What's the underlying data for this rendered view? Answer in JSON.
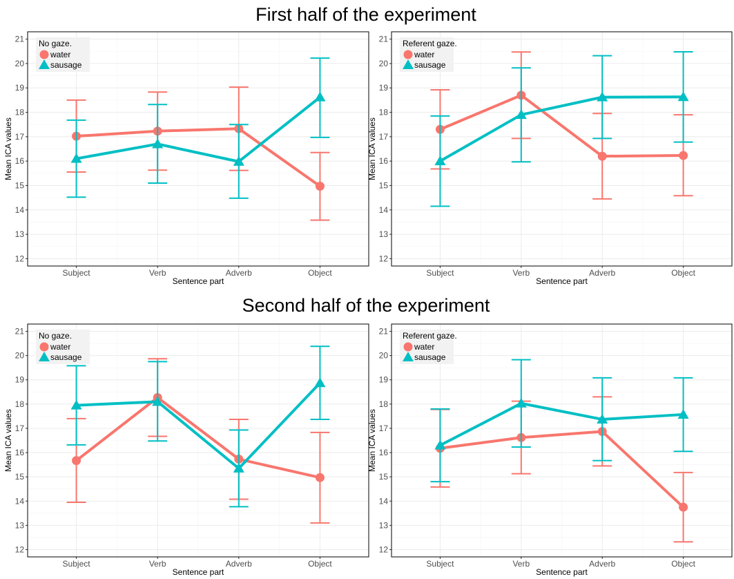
{
  "colors": {
    "water": "#F8766D",
    "sausage": "#00BFC4"
  },
  "sections": [
    {
      "title": "First half of the experiment"
    },
    {
      "title": "Second half of the experiment"
    }
  ],
  "chart_data": [
    {
      "type": "line",
      "panel": "first-half-no-gaze",
      "categories": [
        "Subject",
        "Verb",
        "Adverb",
        "Object"
      ],
      "xlabel": "Sentence part",
      "ylabel": "Mean ICA values",
      "ylim": [
        11.7,
        21.3
      ],
      "yticks": [
        12,
        13,
        14,
        15,
        16,
        17,
        18,
        19,
        20,
        21
      ],
      "legend_title": "No gaze.",
      "legend_position": "top-left",
      "grid": true,
      "series": [
        {
          "name": "water",
          "marker": "circle",
          "values": [
            17.02,
            17.23,
            17.33,
            14.97
          ],
          "lower": [
            15.55,
            15.63,
            15.62,
            13.58
          ],
          "upper": [
            18.5,
            18.83,
            19.03,
            16.35
          ]
        },
        {
          "name": "sausage",
          "marker": "triangle",
          "values": [
            16.1,
            16.7,
            15.98,
            18.62
          ],
          "lower": [
            14.52,
            15.1,
            14.48,
            16.97
          ],
          "upper": [
            17.68,
            18.32,
            17.5,
            20.22
          ]
        }
      ]
    },
    {
      "type": "line",
      "panel": "first-half-referent-gaze",
      "categories": [
        "Subject",
        "Verb",
        "Adverb",
        "Object"
      ],
      "xlabel": "Sentence part",
      "ylabel": "Mean ICA values",
      "ylim": [
        11.7,
        21.3
      ],
      "yticks": [
        12,
        13,
        14,
        15,
        16,
        17,
        18,
        19,
        20,
        21
      ],
      "legend_title": "Referent gaze.",
      "legend_position": "top-left",
      "grid": true,
      "series": [
        {
          "name": "water",
          "marker": "circle",
          "values": [
            17.3,
            18.7,
            16.2,
            16.23
          ],
          "lower": [
            15.68,
            16.93,
            14.45,
            14.58
          ],
          "upper": [
            18.92,
            20.47,
            17.95,
            17.9
          ]
        },
        {
          "name": "sausage",
          "marker": "triangle",
          "values": [
            16.0,
            17.9,
            18.62,
            18.63
          ],
          "lower": [
            14.15,
            15.97,
            16.93,
            16.78
          ],
          "upper": [
            17.85,
            19.82,
            20.32,
            20.48
          ]
        }
      ]
    },
    {
      "type": "line",
      "panel": "second-half-no-gaze",
      "categories": [
        "Subject",
        "Verb",
        "Adverb",
        "Object"
      ],
      "xlabel": "Sentence part",
      "ylabel": "Mean ICA values",
      "ylim": [
        11.7,
        21.3
      ],
      "yticks": [
        12,
        13,
        14,
        15,
        16,
        17,
        18,
        19,
        20,
        21
      ],
      "legend_title": "No gaze.",
      "legend_position": "top-left",
      "grid": true,
      "series": [
        {
          "name": "water",
          "marker": "circle",
          "values": [
            15.67,
            18.27,
            15.73,
            14.97
          ],
          "lower": [
            13.95,
            16.67,
            14.08,
            13.1
          ],
          "upper": [
            17.4,
            19.87,
            17.37,
            16.83
          ]
        },
        {
          "name": "sausage",
          "marker": "triangle",
          "values": [
            17.95,
            18.1,
            15.35,
            18.87
          ],
          "lower": [
            16.32,
            16.48,
            13.77,
            17.37
          ],
          "upper": [
            19.58,
            19.75,
            16.93,
            20.38
          ]
        }
      ]
    },
    {
      "type": "line",
      "panel": "second-half-referent-gaze",
      "categories": [
        "Subject",
        "Verb",
        "Adverb",
        "Object"
      ],
      "xlabel": "Sentence part",
      "ylabel": "Mean ICA values",
      "ylim": [
        11.7,
        21.3
      ],
      "yticks": [
        12,
        13,
        14,
        15,
        16,
        17,
        18,
        19,
        20,
        21
      ],
      "legend_title": "Referent gaze.",
      "legend_position": "top-left",
      "grid": true,
      "series": [
        {
          "name": "water",
          "marker": "circle",
          "values": [
            16.18,
            16.62,
            16.87,
            13.75
          ],
          "lower": [
            14.58,
            15.13,
            15.45,
            12.32
          ],
          "upper": [
            17.78,
            18.12,
            18.3,
            15.18
          ]
        },
        {
          "name": "sausage",
          "marker": "triangle",
          "values": [
            16.3,
            18.03,
            17.37,
            17.57
          ],
          "lower": [
            14.8,
            16.23,
            15.67,
            16.05
          ],
          "upper": [
            17.8,
            19.83,
            19.08,
            19.08
          ]
        }
      ]
    }
  ]
}
